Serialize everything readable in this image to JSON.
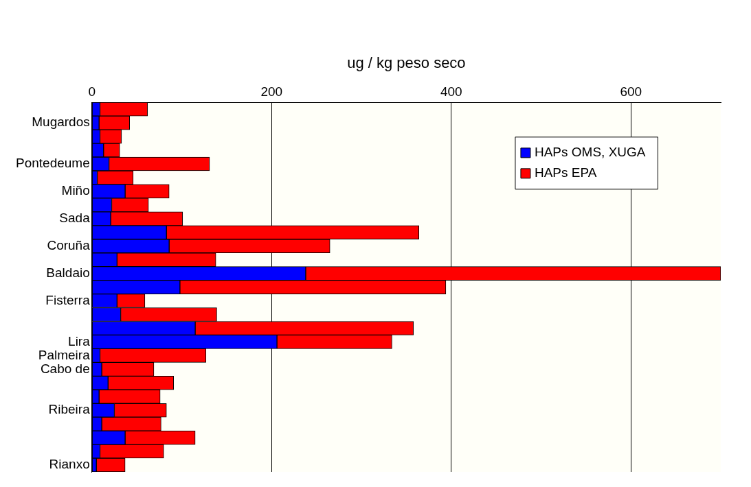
{
  "chart_data": {
    "type": "bar",
    "orientation": "horizontal",
    "stacked": true,
    "xlabel": "ug / kg peso seco",
    "categories": [
      null,
      "Mugardos",
      null,
      null,
      "Pontedeume",
      null,
      "Miño",
      null,
      "Sada",
      null,
      "Coruña",
      null,
      "Baldaio",
      null,
      "Fisterra",
      null,
      null,
      "Lira",
      "Palmeira",
      "Cabo de",
      null,
      null,
      "Ribeira",
      null,
      null,
      null,
      "Rianxo"
    ],
    "series": [
      {
        "name": "HAPs OMS, XUGA",
        "color": "#0000ff",
        "values": [
          9,
          8,
          9,
          13,
          19,
          6,
          37,
          22,
          21,
          83,
          86,
          28,
          238,
          98,
          28,
          32,
          115,
          206,
          9,
          11,
          18,
          8,
          25,
          11,
          37,
          9,
          5
        ]
      },
      {
        "name": "HAPs EPA",
        "color": "#ff0000",
        "values": [
          53,
          34,
          24,
          18,
          112,
          40,
          49,
          41,
          80,
          281,
          179,
          110,
          462,
          296,
          31,
          107,
          243,
          128,
          118,
          58,
          73,
          68,
          58,
          66,
          78,
          71,
          32
        ]
      }
    ],
    "xlim": [
      0,
      700
    ],
    "xticks": [
      0,
      200,
      400,
      600
    ],
    "grid": "x",
    "legend": "top right"
  }
}
